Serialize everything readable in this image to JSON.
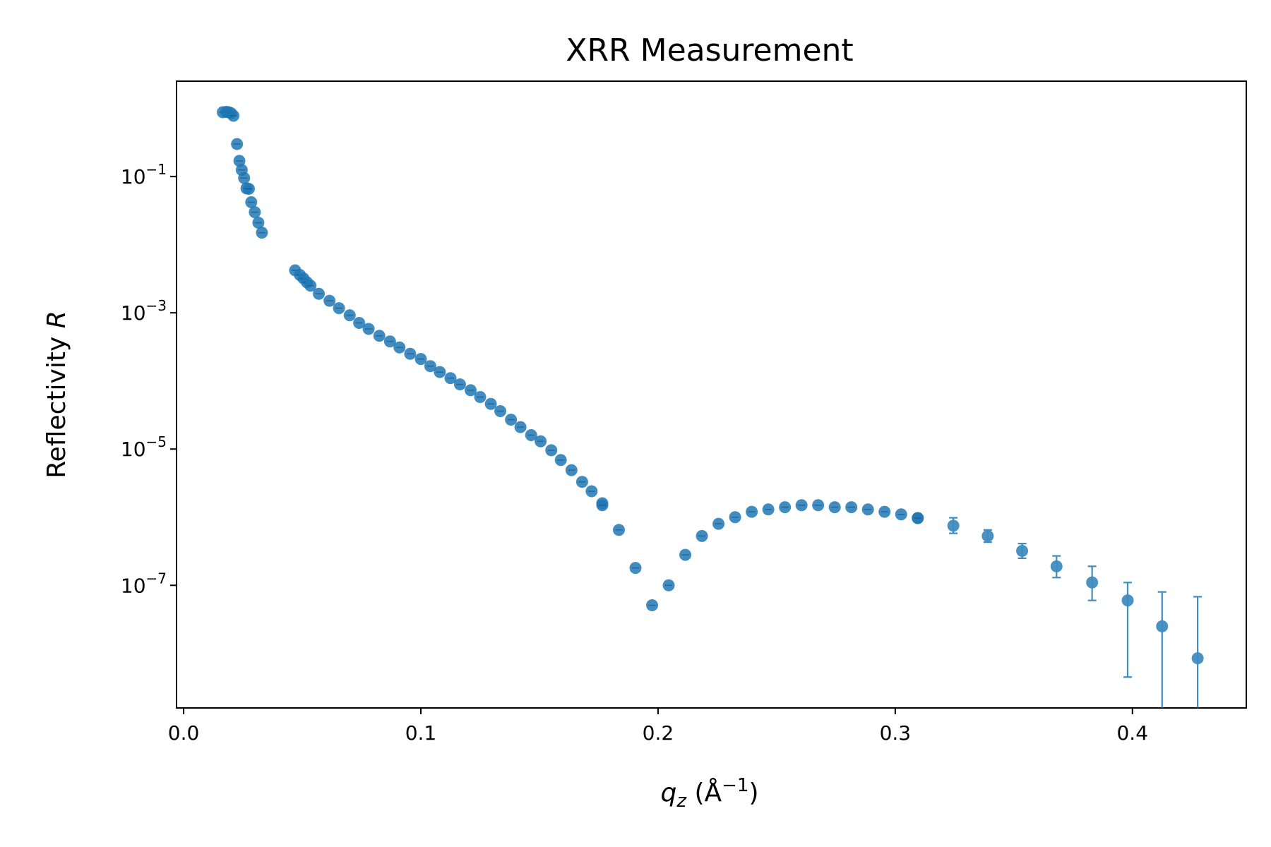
{
  "chart_data": {
    "type": "scatter",
    "title": "XRR Measurement",
    "xlabel": {
      "base": "q",
      "sub": "z",
      "unit_open": " (Å",
      "unit_exp": "−1",
      "unit_close": ")"
    },
    "ylabel": {
      "text": "Reflectivity ",
      "italic": "R"
    },
    "xscale": "linear",
    "yscale": "log",
    "xlim": [
      -0.003,
      0.448
    ],
    "ylim_log10": [
      -8.8,
      0.4
    ],
    "xticks": [
      {
        "value": 0.0,
        "label": "0.0"
      },
      {
        "value": 0.1,
        "label": "0.1"
      },
      {
        "value": 0.2,
        "label": "0.2"
      },
      {
        "value": 0.3,
        "label": "0.3"
      },
      {
        "value": 0.4,
        "label": "0.4"
      }
    ],
    "yticks": [
      {
        "log10": -1,
        "base": "10",
        "exp": "−1"
      },
      {
        "log10": -3,
        "base": "10",
        "exp": "−3"
      },
      {
        "log10": -5,
        "base": "10",
        "exp": "−5"
      },
      {
        "log10": -7,
        "base": "10",
        "exp": "−7"
      }
    ],
    "marker_color": "#1f77b4",
    "grid": false,
    "series": [
      {
        "points": [
          [
            0.0165,
            0.88
          ],
          [
            0.018,
            0.89
          ],
          [
            0.019,
            0.88
          ],
          [
            0.02,
            0.85
          ],
          [
            0.021,
            0.78
          ],
          [
            0.0225,
            0.3
          ],
          [
            0.0235,
            0.17
          ],
          [
            0.0245,
            0.125
          ],
          [
            0.0255,
            0.095
          ],
          [
            0.0265,
            0.067
          ],
          [
            0.0275,
            0.066
          ],
          [
            0.0285,
            0.042
          ],
          [
            0.03,
            0.03
          ],
          [
            0.0315,
            0.021
          ],
          [
            0.033,
            0.015
          ],
          [
            0.047,
            0.0042
          ],
          [
            0.049,
            0.0036
          ],
          [
            0.0505,
            0.0032
          ],
          [
            0.052,
            0.0028
          ],
          [
            0.0535,
            0.0025
          ],
          [
            0.057,
            0.0019
          ],
          [
            0.0615,
            0.0015
          ],
          [
            0.0655,
            0.00117
          ],
          [
            0.07,
            0.00092
          ],
          [
            0.074,
            0.00071
          ],
          [
            0.078,
            0.00058
          ],
          [
            0.0825,
            0.00046
          ],
          [
            0.087,
            0.00038
          ],
          [
            0.091,
            0.00031
          ],
          [
            0.0955,
            0.00025
          ],
          [
            0.1,
            0.00021
          ],
          [
            0.104,
            0.000165
          ],
          [
            0.108,
            0.000135
          ],
          [
            0.1125,
            0.00011
          ],
          [
            0.1165,
            8.9e-05
          ],
          [
            0.121,
            7.3e-05
          ],
          [
            0.125,
            5.8e-05
          ],
          [
            0.1295,
            4.6e-05
          ],
          [
            0.1335,
            3.6e-05
          ],
          [
            0.138,
            2.7e-05
          ],
          [
            0.142,
            2.1e-05
          ],
          [
            0.1465,
            1.6e-05
          ],
          [
            0.1505,
            1.3e-05
          ],
          [
            0.155,
            9.6e-06
          ],
          [
            0.159,
            6.9e-06
          ],
          [
            0.1635,
            4.9e-06
          ],
          [
            0.168,
            3.3e-06
          ],
          [
            0.172,
            2.4e-06
          ],
          [
            0.1765,
            1.6e-06
          ],
          [
            0.1765,
            1.5e-06
          ],
          [
            0.1835,
            6.5e-07
          ],
          [
            0.1905,
            1.8e-07
          ],
          [
            0.1975,
            5.1e-08
          ],
          [
            0.2045,
            1e-07
          ],
          [
            0.2115,
            2.8e-07
          ],
          [
            0.2185,
            5.3e-07
          ],
          [
            0.2255,
            8e-07
          ],
          [
            0.2325,
            1e-06
          ],
          [
            0.2395,
            1.2e-06
          ],
          [
            0.2465,
            1.3e-06
          ],
          [
            0.2535,
            1.4e-06
          ],
          [
            0.2605,
            1.5e-06
          ],
          [
            0.2675,
            1.5e-06
          ],
          [
            0.2745,
            1.4e-06
          ],
          [
            0.2815,
            1.4e-06
          ],
          [
            0.2885,
            1.3e-06
          ],
          [
            0.2955,
            1.2e-06
          ],
          [
            0.3025,
            1.1e-06
          ],
          [
            0.3095,
            9.7e-07
          ]
        ],
        "error_points": [
          {
            "x": 0.3095,
            "y": 9.7e-07,
            "lo": 8.7e-07,
            "hi": 1.1e-06
          },
          {
            "x": 0.3245,
            "y": 7.5e-07,
            "lo": 5.8e-07,
            "hi": 9.8e-07
          },
          {
            "x": 0.339,
            "y": 5.3e-07,
            "lo": 4.3e-07,
            "hi": 6.5e-07
          },
          {
            "x": 0.3535,
            "y": 3.2e-07,
            "lo": 2.5e-07,
            "hi": 4.1e-07
          },
          {
            "x": 0.368,
            "y": 1.9e-07,
            "lo": 1.3e-07,
            "hi": 2.7e-07
          },
          {
            "x": 0.383,
            "y": 1.1e-07,
            "lo": 6e-08,
            "hi": 1.9e-07
          },
          {
            "x": 0.398,
            "y": 6e-08,
            "lo": 4.5e-09,
            "hi": 1.1e-07
          },
          {
            "x": 0.4125,
            "y": 2.5e-08,
            "lo": 1e-10,
            "hi": 8e-08
          },
          {
            "x": 0.4275,
            "y": 8.5e-09,
            "lo": 1e-10,
            "hi": 6.8e-08
          }
        ]
      }
    ]
  }
}
